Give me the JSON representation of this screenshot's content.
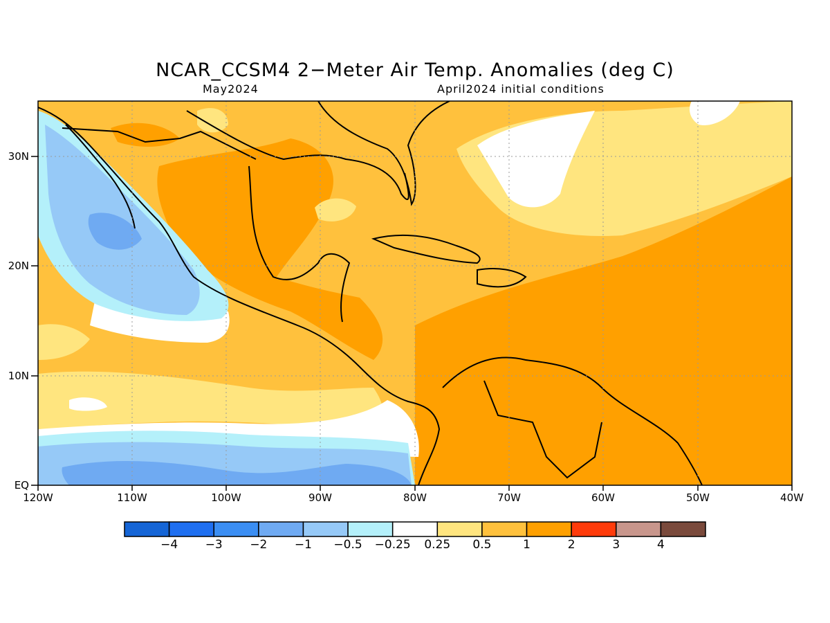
{
  "title": "NCAR_CCSM4 2−Meter Air Temp. Anomalies (deg C)",
  "subtitle_left": "May2024",
  "subtitle_right": "April2024 initial conditions",
  "lat_labels": [
    "30N",
    "20N",
    "10N",
    "EQ"
  ],
  "lon_labels": [
    "120W",
    "110W",
    "100W",
    "90W",
    "80W",
    "70W",
    "60W",
    "50W",
    "40W"
  ],
  "colorbar": {
    "labels": [
      "−4",
      "−3",
      "−2",
      "−1",
      "−0.5",
      "−0.25",
      "0.25",
      "0.5",
      "1",
      "2",
      "3",
      "4"
    ],
    "colors": [
      "#1565d6",
      "#1f6ff0",
      "#3b8ef3",
      "#6faaf2",
      "#96c9f7",
      "#b4f0fa",
      "#ffffff",
      "#ffe57f",
      "#ffc13d",
      "#ffa000",
      "#ff3b0b",
      "#c8968c",
      "#7a4a3c"
    ]
  },
  "palette": {
    "ocean_base": "#ffc13d",
    "warm2": "#ffa000",
    "warm05": "#ffe57f",
    "neutral": "#ffffff",
    "cool025": "#b4f0fa",
    "cool05": "#96c9f7",
    "cool1": "#6faaf2"
  }
}
